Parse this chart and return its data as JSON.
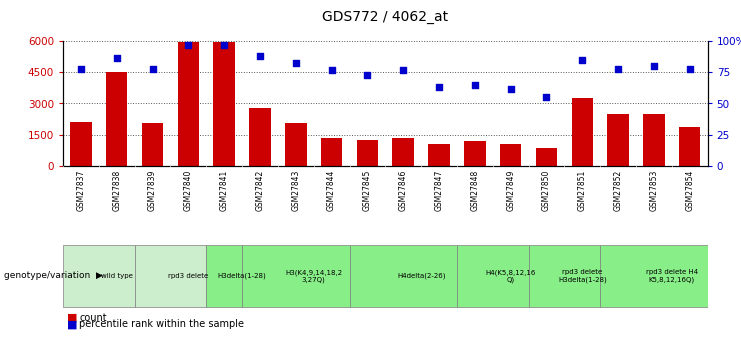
{
  "title": "GDS772 / 4062_at",
  "samples": [
    "GSM27837",
    "GSM27838",
    "GSM27839",
    "GSM27840",
    "GSM27841",
    "GSM27842",
    "GSM27843",
    "GSM27844",
    "GSM27845",
    "GSM27846",
    "GSM27847",
    "GSM27848",
    "GSM27849",
    "GSM27850",
    "GSM27851",
    "GSM27852",
    "GSM27853",
    "GSM27854"
  ],
  "counts": [
    2100,
    4500,
    2050,
    5950,
    5950,
    2800,
    2050,
    1350,
    1250,
    1350,
    1050,
    1200,
    1050,
    850,
    3250,
    2500,
    2500,
    1850
  ],
  "percentiles": [
    78,
    87,
    78,
    97,
    97,
    88,
    83,
    77,
    73,
    77,
    63,
    65,
    62,
    55,
    85,
    78,
    80,
    78
  ],
  "bar_color": "#cc0000",
  "dot_color": "#0000cc",
  "ylim_left": [
    0,
    6000
  ],
  "ylim_right": [
    0,
    100
  ],
  "yticks_left": [
    0,
    1500,
    3000,
    4500,
    6000
  ],
  "yticks_right": [
    0,
    25,
    50,
    75,
    100
  ],
  "yticklabels_right": [
    "0",
    "25",
    "50",
    "75",
    "100%"
  ],
  "genotype_groups": [
    {
      "label": "wild type",
      "start": 0,
      "end": 2,
      "color": "#cceecc"
    },
    {
      "label": "rpd3 delete",
      "start": 2,
      "end": 4,
      "color": "#cceecc"
    },
    {
      "label": "H3delta(1-28)",
      "start": 4,
      "end": 5,
      "color": "#88ee88"
    },
    {
      "label": "H3(K4,9,14,18,2\n3,27Q)",
      "start": 5,
      "end": 8,
      "color": "#88ee88"
    },
    {
      "label": "H4delta(2-26)",
      "start": 8,
      "end": 11,
      "color": "#88ee88"
    },
    {
      "label": "H4(K5,8,12,16\nQ)",
      "start": 11,
      "end": 13,
      "color": "#88ee88"
    },
    {
      "label": "rpd3 delete\nH3delta(1-28)",
      "start": 13,
      "end": 15,
      "color": "#88ee88"
    },
    {
      "label": "rpd3 delete H4\nK5,8,12,16Q)",
      "start": 15,
      "end": 18,
      "color": "#88ee88"
    }
  ],
  "xlabel_genotype": "genotype/variation",
  "legend_count_label": "count",
  "legend_pct_label": "percentile rank within the sample",
  "grid_color": "#555555",
  "xtick_bg": "#bbbbbb",
  "fig_width": 7.41,
  "fig_height": 3.45
}
